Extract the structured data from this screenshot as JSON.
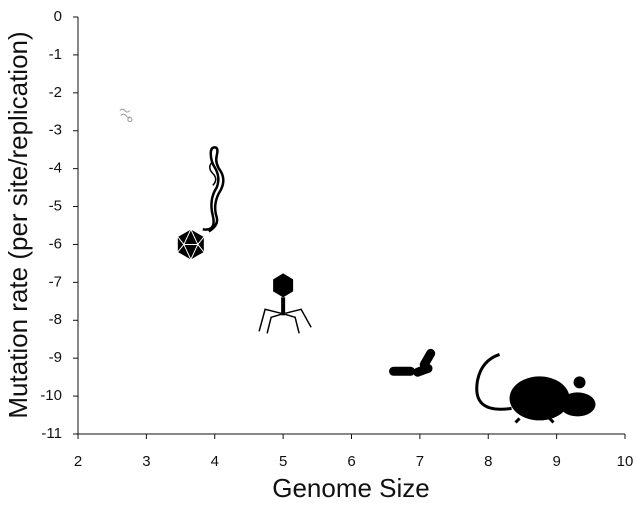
{
  "chart_data": {
    "type": "scatter",
    "xlabel": "Genome Size",
    "ylabel": "Mutation rate (per site/replication)",
    "x": [
      2.7,
      4.0,
      3.65,
      5.0,
      6.9,
      8.75
    ],
    "values": [
      -2.6,
      -4.6,
      -6.0,
      -7.5,
      -9.2,
      -9.85
    ],
    "markers": [
      "viroid",
      "filament",
      "icosahedron",
      "phage",
      "bacterium",
      "mouse"
    ],
    "xlim": [
      2,
      10
    ],
    "xticks": [
      2,
      3,
      4,
      5,
      6,
      7,
      8,
      9,
      10
    ],
    "ylim": [
      -11,
      0
    ],
    "yticks": [
      0,
      -1,
      -2,
      -3,
      -4,
      -5,
      -6,
      -7,
      -8,
      -9,
      -10,
      -11
    ],
    "grid": false
  }
}
